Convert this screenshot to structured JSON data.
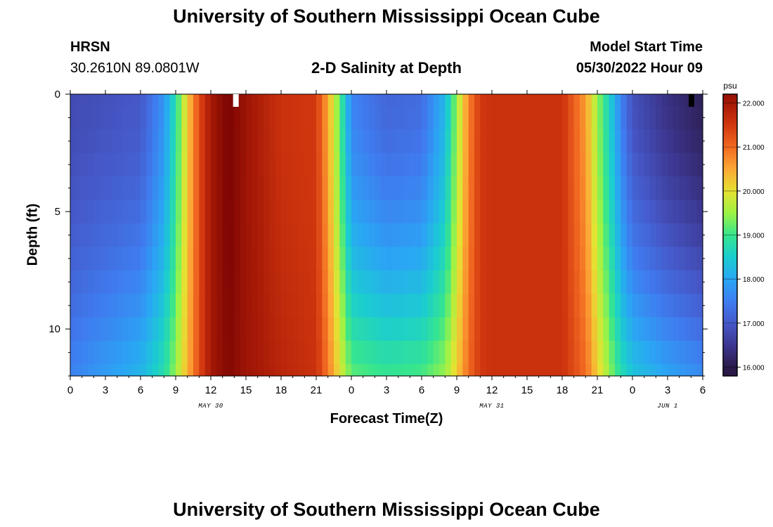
{
  "title": "University of Southern Mississippi Ocean Cube",
  "station": {
    "name": "HRSN",
    "coords": "30.2610N  89.0801W"
  },
  "model": {
    "label": "Model Start Time",
    "start": "05/30/2022 Hour 09"
  },
  "colorbar": {
    "unit": "psu",
    "colors": {
      "16.0": "#2b1a48",
      "16.5": "#3c3790",
      "17.0": "#4658c8",
      "17.5": "#3f7cf0",
      "18.0": "#2aa6f4",
      "18.5": "#1bcdd0",
      "19.0": "#35e58f",
      "19.5": "#9cf345",
      "20.0": "#e5e232",
      "20.5": "#fca935",
      "21.0": "#f26a22",
      "21.5": "#d2380f",
      "22.0": "#a61907",
      "22.5": "#7a0403"
    }
  },
  "chart_data": {
    "type": "heatmap",
    "title": "2-D Salinity at Depth",
    "xlabel": "Forecast Time(Z)",
    "ylabel": "Depth (ft)",
    "x_tick_labels": [
      "0",
      "3",
      "6",
      "9",
      "12",
      "15",
      "18",
      "21",
      "0",
      "3",
      "6",
      "9",
      "12",
      "15",
      "18",
      "21",
      "0",
      "3",
      "6"
    ],
    "date_labels": [
      "MAY 30",
      "MAY 31",
      "JUN 1"
    ],
    "y_tick_labels": [
      "0",
      "5",
      "10"
    ],
    "ylim": [
      0,
      12
    ],
    "colorbar_ticks": [
      "22.000",
      "21.000",
      "20.000",
      "19.000",
      "18.000",
      "17.000",
      "16.000"
    ],
    "colorbar_range": [
      15.8,
      22.2
    ],
    "time_range_hours": [
      0,
      54
    ],
    "depth_levels_ft": [
      0,
      0.5,
      1.5,
      2.5,
      3.5,
      4.5,
      5.5,
      6.5,
      7.5,
      8.5,
      9.5,
      10.5,
      11.5,
      12
    ],
    "salinity_profiles_psu": {
      "hours": [
        0,
        3,
        6,
        8,
        9,
        10,
        11,
        12,
        13.5,
        15,
        18,
        21,
        22,
        23,
        24,
        27,
        30,
        32,
        33,
        34,
        35,
        36,
        39,
        42,
        44,
        45,
        46,
        47,
        48,
        51,
        54
      ],
      "surface": [
        16.8,
        16.9,
        17.0,
        17.8,
        18.8,
        20.2,
        21.3,
        22.0,
        22.5,
        22.1,
        21.6,
        21.5,
        20.5,
        19.2,
        17.6,
        17.2,
        17.3,
        18.2,
        19.5,
        20.8,
        21.5,
        21.6,
        21.6,
        21.6,
        20.6,
        19.5,
        18.6,
        17.6,
        16.9,
        16.4,
        16.1
      ],
      "bottom": [
        17.6,
        17.9,
        18.2,
        18.8,
        19.5,
        20.4,
        21.3,
        22.0,
        22.4,
        22.1,
        21.8,
        21.6,
        20.9,
        20.0,
        19.2,
        19.0,
        19.1,
        19.5,
        20.2,
        21.0,
        21.5,
        21.6,
        21.6,
        21.6,
        21.0,
        20.2,
        19.5,
        18.8,
        18.4,
        18.0,
        17.7
      ]
    }
  }
}
